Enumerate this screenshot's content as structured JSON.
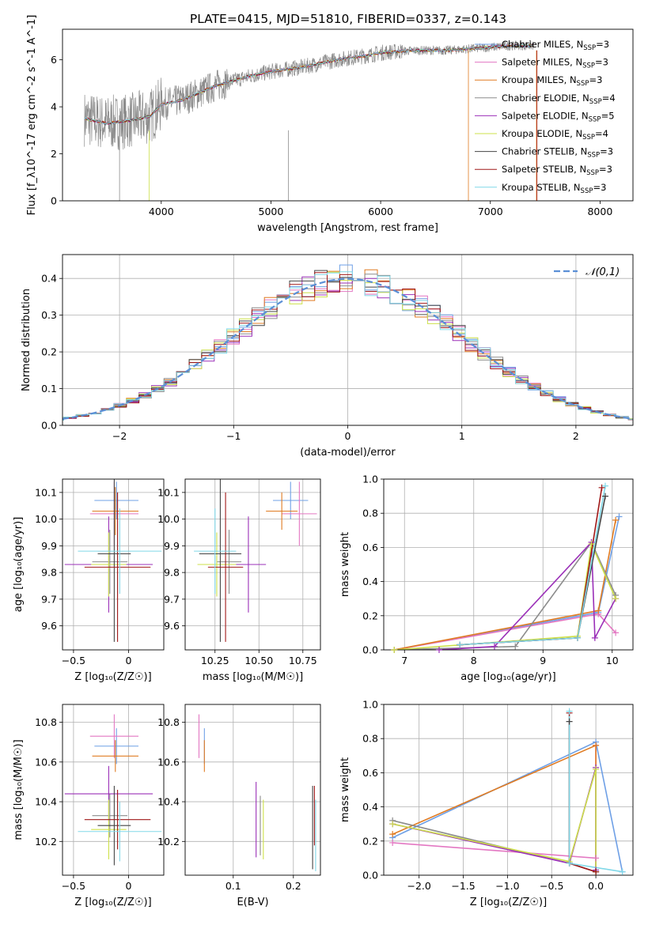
{
  "title": "PLATE=0415, MJD=51810, FIBERID=0337, z=0.143",
  "colors": {
    "chabrier_miles": "#6fa0e6",
    "salpeter_miles": "#e377c2",
    "kroupa_miles": "#e07b22",
    "chabrier_elodie": "#8c8c8c",
    "salpeter_elodie": "#9b30b8",
    "kroupa_elodie": "#cde04a",
    "chabrier_stelib": "#444444",
    "salpeter_stelib": "#a01818",
    "kroupa_stelib": "#80d8e8",
    "normal": "#5b8fd6",
    "grid": "#b0b0b0"
  },
  "chart_data": [
    {
      "id": "spectrum",
      "type": "line",
      "xlabel": "wavelength [Angstrom, rest frame]",
      "ylabel": "Flux [f_λ10^-17 erg cm^-2 s^-1 A^-1]",
      "xlim": [
        3100,
        8300
      ],
      "ylim": [
        0,
        7.3
      ],
      "xticks": [
        4000,
        5000,
        6000,
        7000,
        8000
      ],
      "yticks": [
        0,
        2,
        4,
        6
      ],
      "legend": [
        {
          "key": "chabrier_miles",
          "label": "Chabrier MILES, N_SSP=3"
        },
        {
          "key": "salpeter_miles",
          "label": "Salpeter MILES, N_SSP=3"
        },
        {
          "key": "kroupa_miles",
          "label": "Kroupa MILES, N_SSP=3"
        },
        {
          "key": "chabrier_elodie",
          "label": "Chabrier ELODIE, N_SSP=4"
        },
        {
          "key": "salpeter_elodie",
          "label": "Salpeter ELODIE, N_SSP=5"
        },
        {
          "key": "kroupa_elodie",
          "label": "Kroupa ELODIE, N_SSP=4"
        },
        {
          "key": "chabrier_stelib",
          "label": "Chabrier STELIB, N_SSP=3"
        },
        {
          "key": "salpeter_stelib",
          "label": "Salpeter STELIB, N_SSP=3"
        },
        {
          "key": "kroupa_stelib",
          "label": "Kroupa STELIB, N_SSP=3"
        }
      ],
      "continuum": {
        "x": [
          3300,
          3500,
          3700,
          3900,
          4000,
          4200,
          4500,
          4800,
          5000,
          5300,
          5600,
          5900,
          6000,
          6300,
          6600,
          6900,
          7200,
          7400
        ],
        "y": [
          3.5,
          3.3,
          3.4,
          3.6,
          4.1,
          4.3,
          4.9,
          5.3,
          5.5,
          5.7,
          6.0,
          6.2,
          6.3,
          6.4,
          6.4,
          6.5,
          6.6,
          6.6
        ]
      }
    },
    {
      "id": "residuals",
      "type": "step",
      "xlabel": "(data-model)/error",
      "ylabel": "Normed distribution",
      "xlim": [
        -2.5,
        2.5
      ],
      "ylim": [
        0,
        0.465
      ],
      "xticks": [
        -2,
        -1,
        0,
        1,
        2
      ],
      "yticks": [
        0.0,
        0.1,
        0.2,
        0.3,
        0.4
      ],
      "legend_label": "𝒩(0,1)"
    },
    {
      "id": "age_vs_Z",
      "type": "errorbar",
      "xlabel": "Z [log₁₀(Z/Z☉)]",
      "ylabel": "age  [log₁₀(age/yr)]",
      "xlim": [
        -0.6,
        0.32
      ],
      "ylim": [
        9.51,
        10.15
      ],
      "xticks": [
        -0.5,
        0.0
      ],
      "yticks": [
        9.6,
        9.7,
        9.8,
        9.9,
        10.0,
        10.1
      ],
      "points": [
        {
          "key": "chabrier_miles",
          "x": -0.11,
          "xe": 0.2,
          "y": 10.07,
          "ye": 0.07
        },
        {
          "key": "salpeter_miles",
          "x": -0.13,
          "xe": 0.22,
          "y": 10.02,
          "ye": 0.12
        },
        {
          "key": "kroupa_miles",
          "x": -0.12,
          "xe": 0.21,
          "y": 10.03,
          "ye": 0.09
        },
        {
          "key": "chabrier_elodie",
          "x": -0.17,
          "xe": 0.16,
          "y": 9.84,
          "ye": 0.12
        },
        {
          "key": "salpeter_elodie",
          "x": -0.18,
          "xe": 0.4,
          "y": 9.83,
          "ye": 0.18
        },
        {
          "key": "kroupa_elodie",
          "x": -0.18,
          "xe": 0.16,
          "y": 9.83,
          "ye": 0.12
        },
        {
          "key": "chabrier_stelib",
          "x": -0.13,
          "xe": 0.15,
          "y": 9.87,
          "ye": 0.33
        },
        {
          "key": "salpeter_stelib",
          "x": -0.1,
          "xe": 0.3,
          "y": 9.82,
          "ye": 0.28
        },
        {
          "key": "kroupa_stelib",
          "x": -0.08,
          "xe": 0.38,
          "y": 9.88,
          "ye": 0.16
        }
      ]
    },
    {
      "id": "age_vs_mass",
      "type": "errorbar",
      "xlabel": "mass [log₁₀(M/M☉)]",
      "ylabel": "",
      "xlim": [
        10.08,
        10.85
      ],
      "ylim": [
        9.51,
        10.15
      ],
      "xticks": [
        10.25,
        10.5,
        10.75
      ],
      "yticks": [
        9.6,
        9.7,
        9.8,
        9.9,
        10.0,
        10.1
      ],
      "xticklabels": [
        "10.25",
        "10.50",
        "10.75"
      ],
      "points": [
        {
          "key": "chabrier_miles",
          "x": 10.68,
          "xe": 0.1,
          "y": 10.07,
          "ye": 0.07
        },
        {
          "key": "salpeter_miles",
          "x": 10.73,
          "xe": 0.1,
          "y": 10.02,
          "ye": 0.12
        },
        {
          "key": "kroupa_miles",
          "x": 10.63,
          "xe": 0.09,
          "y": 10.03,
          "ye": 0.07
        },
        {
          "key": "chabrier_elodie",
          "x": 10.33,
          "xe": 0.07,
          "y": 9.84,
          "ye": 0.12
        },
        {
          "key": "salpeter_elodie",
          "x": 10.44,
          "xe": 0.1,
          "y": 9.83,
          "ye": 0.18
        },
        {
          "key": "kroupa_elodie",
          "x": 10.26,
          "xe": 0.11,
          "y": 9.83,
          "ye": 0.12
        },
        {
          "key": "chabrier_stelib",
          "x": 10.28,
          "xe": 0.12,
          "y": 9.87,
          "ye": 0.33
        },
        {
          "key": "salpeter_stelib",
          "x": 10.31,
          "xe": 0.1,
          "y": 9.82,
          "ye": 0.28
        },
        {
          "key": "kroupa_stelib",
          "x": 10.25,
          "xe": 0.12,
          "y": 9.88,
          "ye": 0.16
        }
      ]
    },
    {
      "id": "mass_weight_vs_age",
      "type": "line",
      "xlabel": "age  [log₁₀(age/yr)]",
      "ylabel": "mass weight",
      "xlim": [
        6.7,
        10.3
      ],
      "ylim": [
        0,
        1
      ],
      "xticks": [
        7,
        8,
        9,
        10
      ],
      "yticks": [
        0.0,
        0.2,
        0.4,
        0.6,
        0.8,
        1.0
      ],
      "series": [
        {
          "key": "chabrier_miles",
          "x": [
            6.85,
            9.8,
            10.1
          ],
          "y": [
            0.0,
            0.22,
            0.78
          ]
        },
        {
          "key": "salpeter_miles",
          "x": [
            6.85,
            9.8,
            10.05
          ],
          "y": [
            0.0,
            0.21,
            0.1
          ]
        },
        {
          "key": "kroupa_miles",
          "x": [
            6.85,
            9.8,
            10.05
          ],
          "y": [
            0.0,
            0.23,
            0.76
          ]
        },
        {
          "key": "chabrier_elodie",
          "x": [
            6.85,
            8.6,
            9.7,
            10.05
          ],
          "y": [
            0.0,
            0.02,
            0.63,
            0.32
          ]
        },
        {
          "key": "salpeter_elodie",
          "x": [
            7.5,
            8.3,
            9.7,
            9.75,
            10.05
          ],
          "y": [
            0.0,
            0.02,
            0.63,
            0.07,
            0.3
          ]
        },
        {
          "key": "kroupa_elodie",
          "x": [
            6.85,
            9.5,
            9.7,
            10.05
          ],
          "y": [
            0.0,
            0.08,
            0.62,
            0.3
          ]
        },
        {
          "key": "chabrier_stelib",
          "x": [
            7.8,
            9.5,
            9.9
          ],
          "y": [
            0.03,
            0.07,
            0.9
          ]
        },
        {
          "key": "salpeter_stelib",
          "x": [
            7.8,
            9.5,
            9.85
          ],
          "y": [
            0.03,
            0.07,
            0.95
          ]
        },
        {
          "key": "kroupa_stelib",
          "x": [
            7.8,
            9.5,
            9.9
          ],
          "y": [
            0.03,
            0.07,
            0.96
          ]
        }
      ]
    },
    {
      "id": "mass_vs_Z",
      "type": "errorbar",
      "xlabel": "Z [log₁₀(Z/Z☉)]",
      "ylabel": "mass [log₁₀(M/M☉)]",
      "xlim": [
        -0.6,
        0.32
      ],
      "ylim": [
        10.03,
        10.89
      ],
      "xticks": [
        -0.5,
        0.0
      ],
      "yticks": [
        10.2,
        10.4,
        10.6,
        10.8
      ],
      "points": [
        {
          "key": "chabrier_miles",
          "x": -0.11,
          "xe": 0.2,
          "y": 10.68,
          "ye": 0.09
        },
        {
          "key": "salpeter_miles",
          "x": -0.13,
          "xe": 0.22,
          "y": 10.73,
          "ye": 0.11
        },
        {
          "key": "kroupa_miles",
          "x": -0.12,
          "xe": 0.21,
          "y": 10.63,
          "ye": 0.08
        },
        {
          "key": "chabrier_elodie",
          "x": -0.17,
          "xe": 0.16,
          "y": 10.33,
          "ye": 0.11
        },
        {
          "key": "salpeter_elodie",
          "x": -0.18,
          "xe": 0.4,
          "y": 10.44,
          "ye": 0.14
        },
        {
          "key": "kroupa_elodie",
          "x": -0.18,
          "xe": 0.16,
          "y": 10.26,
          "ye": 0.15
        },
        {
          "key": "chabrier_stelib",
          "x": -0.13,
          "xe": 0.15,
          "y": 10.28,
          "ye": 0.2
        },
        {
          "key": "salpeter_stelib",
          "x": -0.1,
          "xe": 0.3,
          "y": 10.31,
          "ye": 0.15
        },
        {
          "key": "kroupa_stelib",
          "x": -0.08,
          "xe": 0.38,
          "y": 10.25,
          "ye": 0.15
        }
      ]
    },
    {
      "id": "mass_vs_ebv",
      "type": "errorbar",
      "xlabel": "E(B-V)",
      "ylabel": "",
      "xlim": [
        0.02,
        0.245
      ],
      "ylim": [
        10.03,
        10.89
      ],
      "xticks": [
        0.1,
        0.2
      ],
      "yticks": [
        10.2,
        10.4,
        10.6,
        10.8
      ],
      "points": [
        {
          "key": "chabrier_miles",
          "x": 0.052,
          "y": 10.68,
          "ye": 0.09
        },
        {
          "key": "salpeter_miles",
          "x": 0.043,
          "y": 10.73,
          "ye": 0.11
        },
        {
          "key": "kroupa_miles",
          "x": 0.052,
          "y": 10.63,
          "ye": 0.08
        },
        {
          "key": "chabrier_elodie",
          "x": 0.145,
          "y": 10.28,
          "ye": 0.15
        },
        {
          "key": "salpeter_elodie",
          "x": 0.138,
          "y": 10.31,
          "ye": 0.19
        },
        {
          "key": "kroupa_elodie",
          "x": 0.15,
          "y": 10.26,
          "ye": 0.15
        },
        {
          "key": "chabrier_stelib",
          "x": 0.232,
          "y": 10.27,
          "ye": 0.21
        },
        {
          "key": "salpeter_stelib",
          "x": 0.235,
          "y": 10.33,
          "ye": 0.15
        },
        {
          "key": "kroupa_stelib",
          "x": 0.237,
          "y": 10.23,
          "ye": 0.18
        }
      ]
    },
    {
      "id": "mass_weight_vs_Z",
      "type": "line",
      "xlabel": "Z [log₁₀(Z/Z☉)]",
      "ylabel": "mass weight",
      "xlim": [
        -2.4,
        0.42
      ],
      "ylim": [
        0,
        1
      ],
      "xticks": [
        -2.0,
        -1.5,
        -1.0,
        -0.5,
        0.0
      ],
      "yticks": [
        0.0,
        0.2,
        0.4,
        0.6,
        0.8,
        1.0
      ],
      "series": [
        {
          "key": "chabrier_miles",
          "x": [
            -2.3,
            0.0,
            0.3
          ],
          "y": [
            0.22,
            0.78,
            0.02
          ]
        },
        {
          "key": "salpeter_miles",
          "x": [
            -2.3,
            0.0,
            0.0
          ],
          "y": [
            0.19,
            0.1,
            0.76
          ]
        },
        {
          "key": "kroupa_miles",
          "x": [
            -2.3,
            0.0,
            0.0
          ],
          "y": [
            0.24,
            0.76,
            0.02
          ]
        },
        {
          "key": "chabrier_elodie",
          "x": [
            -2.3,
            -0.3,
            0.0,
            0.0
          ],
          "y": [
            0.32,
            0.07,
            0.63,
            0.02
          ]
        },
        {
          "key": "salpeter_elodie",
          "x": [
            -2.3,
            -0.3,
            0.0,
            0.0
          ],
          "y": [
            0.3,
            0.07,
            0.63,
            0.03
          ]
        },
        {
          "key": "kroupa_elodie",
          "x": [
            -2.3,
            -0.3,
            0.0,
            0.0
          ],
          "y": [
            0.3,
            0.08,
            0.62,
            0.02
          ]
        },
        {
          "key": "chabrier_stelib",
          "x": [
            -0.3,
            -0.3,
            0.0
          ],
          "y": [
            0.9,
            0.07,
            0.02
          ]
        },
        {
          "key": "salpeter_stelib",
          "x": [
            -0.3,
            -0.3,
            0.0
          ],
          "y": [
            0.95,
            0.07,
            0.02
          ]
        },
        {
          "key": "kroupa_stelib",
          "x": [
            -0.3,
            -0.3,
            0.3
          ],
          "y": [
            0.96,
            0.07,
            0.02
          ]
        }
      ]
    }
  ]
}
